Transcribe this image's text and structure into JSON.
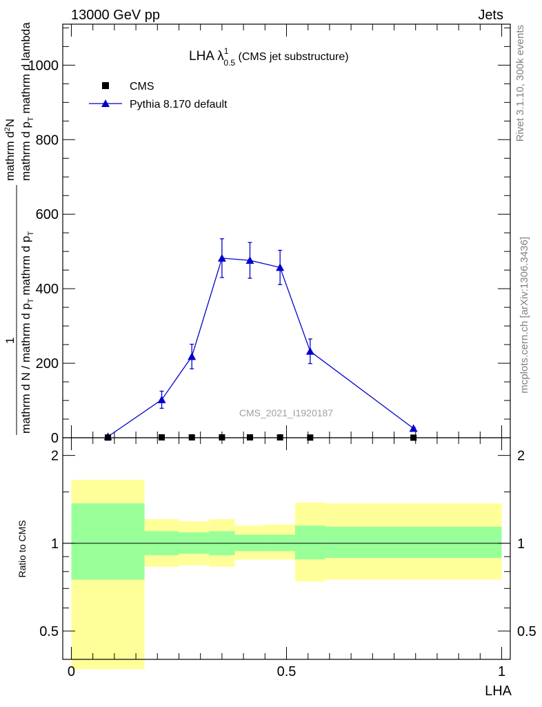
{
  "header": {
    "left": "13000 GeV pp",
    "right": "Jets"
  },
  "side_labels": {
    "rivet": "Rivet 3.1.10,  300k events",
    "mcplots": "mcplots.cern.ch [arXiv:1306.3436]"
  },
  "plot_title": {
    "main": "LHA λ",
    "sup": "1",
    "sub": "0.5",
    "rest": " (CMS jet substructure)"
  },
  "watermark": "CMS_2021_I1920187",
  "y_axis_label": {
    "numer": "mathrm d",
    "numer_sup": "2",
    "numer_end": "N",
    "denom_1": "mathrm d p",
    "denom_1_sub": "T",
    "denom_2": " mathrm d lambda",
    "prefix": "1",
    "prefix_denom_1": "mathrm d N / mathrm d p",
    "prefix_denom_1_sub": "T",
    "prefix_denom_2": " mathrm d p",
    "prefix_denom_2_sub": "T"
  },
  "ratio_label": "Ratio to CMS",
  "x_label": "LHA",
  "chart_data": {
    "type": "line",
    "xlim": [
      -0.02,
      1.02
    ],
    "ylim_main": [
      0,
      1110
    ],
    "ylim_ratio": [
      0.4,
      2.3
    ],
    "ratio_log": true,
    "main_yticks": [
      0,
      200,
      400,
      600,
      800,
      1000
    ],
    "main_ytick_labels": [
      "0",
      "200",
      "400",
      "600",
      "800",
      "1000"
    ],
    "ratio_yticks": [
      0.5,
      1,
      2
    ],
    "ratio_ytick_labels": [
      "0.5",
      "1",
      "2"
    ],
    "xticks": [
      0,
      0.5,
      1
    ],
    "xtick_labels": [
      "0",
      "0.5",
      "1"
    ],
    "legend_position": "top-left",
    "legend": [
      "CMS",
      "Pythia 8.170 default"
    ],
    "series": [
      {
        "name": "CMS",
        "marker": "square",
        "color": "#000000",
        "x": [
          0.085,
          0.21,
          0.28,
          0.35,
          0.415,
          0.485,
          0.555,
          0.795
        ],
        "y": [
          0.5,
          1,
          1,
          1,
          1,
          1,
          0.5,
          0.2
        ]
      },
      {
        "name": "Pythia 8.170 default",
        "marker": "triangle",
        "color": "#0000cc",
        "x": [
          0.085,
          0.21,
          0.28,
          0.35,
          0.415,
          0.485,
          0.555,
          0.795
        ],
        "y": [
          3,
          102,
          218,
          482,
          476,
          457,
          232,
          25
        ],
        "err": [
          1,
          23,
          33,
          52,
          48,
          46,
          33,
          3
        ]
      }
    ],
    "ratio_bands": [
      {
        "x0": 0.0,
        "x1": 0.17,
        "inner_lo": 0.75,
        "inner_hi": 1.37,
        "outer_lo": 0.37,
        "outer_hi": 1.65
      },
      {
        "x0": 0.17,
        "x1": 0.25,
        "inner_lo": 0.91,
        "inner_hi": 1.1,
        "outer_lo": 0.83,
        "outer_hi": 1.21
      },
      {
        "x0": 0.25,
        "x1": 0.32,
        "inner_lo": 0.92,
        "inner_hi": 1.09,
        "outer_lo": 0.84,
        "outer_hi": 1.19
      },
      {
        "x0": 0.32,
        "x1": 0.38,
        "inner_lo": 0.91,
        "inner_hi": 1.1,
        "outer_lo": 0.83,
        "outer_hi": 1.21
      },
      {
        "x0": 0.38,
        "x1": 0.45,
        "inner_lo": 0.94,
        "inner_hi": 1.07,
        "outer_lo": 0.88,
        "outer_hi": 1.15
      },
      {
        "x0": 0.45,
        "x1": 0.52,
        "inner_lo": 0.94,
        "inner_hi": 1.07,
        "outer_lo": 0.88,
        "outer_hi": 1.16
      },
      {
        "x0": 0.52,
        "x1": 0.59,
        "inner_lo": 0.88,
        "inner_hi": 1.15,
        "outer_lo": 0.74,
        "outer_hi": 1.38
      },
      {
        "x0": 0.59,
        "x1": 1.0,
        "inner_lo": 0.89,
        "inner_hi": 1.14,
        "outer_lo": 0.75,
        "outer_hi": 1.37
      }
    ],
    "band_colors": {
      "inner": "#99ff99",
      "outer": "#ffff99"
    }
  }
}
